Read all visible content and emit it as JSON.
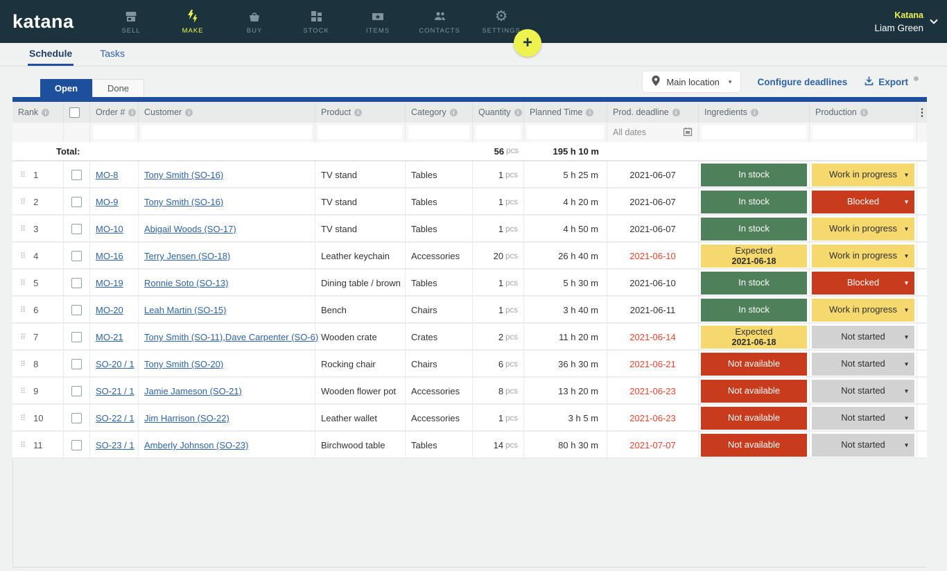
{
  "nav": {
    "logo": "katana",
    "items": [
      {
        "label": "Sell",
        "icon": "storefront-icon",
        "active": false
      },
      {
        "label": "Make",
        "icon": "bolts-icon",
        "active": true
      },
      {
        "label": "Buy",
        "icon": "basket-icon",
        "active": false
      },
      {
        "label": "Stock",
        "icon": "boxes-icon",
        "active": false
      },
      {
        "label": "Items",
        "icon": "tag-star-icon",
        "active": false
      },
      {
        "label": "Contacts",
        "icon": "people-icon",
        "active": false
      },
      {
        "label": "Settings",
        "icon": "gear-icon",
        "active": false
      }
    ],
    "account_name": "Katana",
    "user_name": "Liam Green"
  },
  "page_tabs": [
    {
      "label": "Schedule",
      "active": true
    },
    {
      "label": "Tasks",
      "active": false
    }
  ],
  "add_button_label": "+",
  "toolbar": {
    "location_label": "Main location",
    "configure_deadlines_label": "Configure deadlines",
    "export_label": "Export"
  },
  "view_tabs": [
    {
      "label": "Open",
      "active": true
    },
    {
      "label": "Done",
      "active": false
    }
  ],
  "table": {
    "columns": [
      "Rank",
      "Order #",
      "Customer",
      "Product",
      "Category",
      "Quantity",
      "Planned Time",
      "Prod. deadline",
      "Ingredients",
      "Production"
    ],
    "deadline_filter_label": "All dates",
    "quantity_unit": "pcs",
    "total": {
      "label": "Total:",
      "quantity": "56",
      "planned_time": "195 h 10 m"
    },
    "rows": [
      {
        "rank": "1",
        "order": "MO-8",
        "customers": [
          "Tony Smith (SO-16)"
        ],
        "product": "TV stand",
        "category": "Tables",
        "quantity": "1",
        "planned_time": "5 h 25 m",
        "deadline": {
          "value": "2021-06-07",
          "overdue": false
        },
        "ingredients": {
          "label": "In stock",
          "status": "green"
        },
        "production": {
          "label": "Work in progress",
          "status": "yellow"
        }
      },
      {
        "rank": "2",
        "order": "MO-9",
        "customers": [
          "Tony Smith (SO-16)"
        ],
        "product": "TV stand",
        "category": "Tables",
        "quantity": "1",
        "planned_time": "4 h 20 m",
        "deadline": {
          "value": "2021-06-07",
          "overdue": false
        },
        "ingredients": {
          "label": "In stock",
          "status": "green"
        },
        "production": {
          "label": "Blocked",
          "status": "red"
        }
      },
      {
        "rank": "3",
        "order": "MO-10",
        "customers": [
          "Abigail Woods (SO-17)"
        ],
        "product": "TV stand",
        "category": "Tables",
        "quantity": "1",
        "planned_time": "4 h 50 m",
        "deadline": {
          "value": "2021-06-07",
          "overdue": false
        },
        "ingredients": {
          "label": "In stock",
          "status": "green"
        },
        "production": {
          "label": "Work in progress",
          "status": "yellow"
        }
      },
      {
        "rank": "4",
        "order": "MO-16",
        "customers": [
          "Terry Jensen (SO-18)"
        ],
        "product": "Leather keychain",
        "category": "Accessories",
        "quantity": "20",
        "planned_time": "26 h 40 m",
        "deadline": {
          "value": "2021-06-10",
          "overdue": true
        },
        "ingredients": {
          "label": "Expected",
          "date": "2021-06-18",
          "status": "yellow"
        },
        "production": {
          "label": "Work in progress",
          "status": "yellow"
        }
      },
      {
        "rank": "5",
        "order": "MO-19",
        "customers": [
          "Ronnie Soto (SO-13)"
        ],
        "product": "Dining table / brown",
        "category": "Tables",
        "quantity": "1",
        "planned_time": "5 h 30 m",
        "deadline": {
          "value": "2021-06-10",
          "overdue": false
        },
        "ingredients": {
          "label": "In stock",
          "status": "green"
        },
        "production": {
          "label": "Blocked",
          "status": "red"
        }
      },
      {
        "rank": "6",
        "order": "MO-20",
        "customers": [
          "Leah Martin (SO-15)"
        ],
        "product": "Bench",
        "category": "Chairs",
        "quantity": "1",
        "planned_time": "3 h 40 m",
        "deadline": {
          "value": "2021-06-11",
          "overdue": false
        },
        "ingredients": {
          "label": "In stock",
          "status": "green"
        },
        "production": {
          "label": "Work in progress",
          "status": "yellow"
        }
      },
      {
        "rank": "7",
        "order": "MO-21",
        "customers": [
          "Tony Smith (SO-11)",
          "Dave Carpenter (SO-6)"
        ],
        "product": "Wooden crate",
        "category": "Crates",
        "quantity": "2",
        "planned_time": "11 h 20 m",
        "deadline": {
          "value": "2021-06-14",
          "overdue": true
        },
        "ingredients": {
          "label": "Expected",
          "date": "2021-06-18",
          "status": "yellow"
        },
        "production": {
          "label": "Not started",
          "status": "gray"
        }
      },
      {
        "rank": "8",
        "order": "SO-20 / 1",
        "customers": [
          "Tony Smith (SO-20)"
        ],
        "product": "Rocking chair",
        "category": "Chairs",
        "quantity": "6",
        "planned_time": "36 h 30 m",
        "deadline": {
          "value": "2021-06-21",
          "overdue": true
        },
        "ingredients": {
          "label": "Not available",
          "status": "red"
        },
        "production": {
          "label": "Not started",
          "status": "gray"
        }
      },
      {
        "rank": "9",
        "order": "SO-21 / 1",
        "customers": [
          "Jamie Jameson (SO-21)"
        ],
        "product": "Wooden flower pot",
        "category": "Accessories",
        "quantity": "8",
        "planned_time": "13 h 20 m",
        "deadline": {
          "value": "2021-06-23",
          "overdue": true
        },
        "ingredients": {
          "label": "Not available",
          "status": "red"
        },
        "production": {
          "label": "Not started",
          "status": "gray"
        }
      },
      {
        "rank": "10",
        "order": "SO-22 / 1",
        "customers": [
          "Jim Harrison (SO-22)"
        ],
        "product": "Leather wallet",
        "category": "Accessories",
        "quantity": "1",
        "planned_time": "3 h 5 m",
        "deadline": {
          "value": "2021-06-23",
          "overdue": true
        },
        "ingredients": {
          "label": "Not available",
          "status": "red"
        },
        "production": {
          "label": "Not started",
          "status": "gray"
        }
      },
      {
        "rank": "11",
        "order": "SO-23 / 1",
        "customers": [
          "Amberly Johnson (SO-23)"
        ],
        "product": "Birchwood table",
        "category": "Tables",
        "quantity": "14",
        "planned_time": "80 h 30 m",
        "deadline": {
          "value": "2021-07-07",
          "overdue": true
        },
        "ingredients": {
          "label": "Not available",
          "status": "red"
        },
        "production": {
          "label": "Not started",
          "status": "gray"
        }
      }
    ]
  },
  "colors": {
    "navbar": "#1c333d",
    "accent_yellow": "#edf24f",
    "primary_blue": "#1d4f9c",
    "link_blue": "#2d63a5",
    "status_green": "#4e8159",
    "status_yellow": "#f6d96e",
    "status_red": "#c93b1d",
    "status_gray": "#d2d2d2",
    "overdue_red": "#e8432d"
  }
}
